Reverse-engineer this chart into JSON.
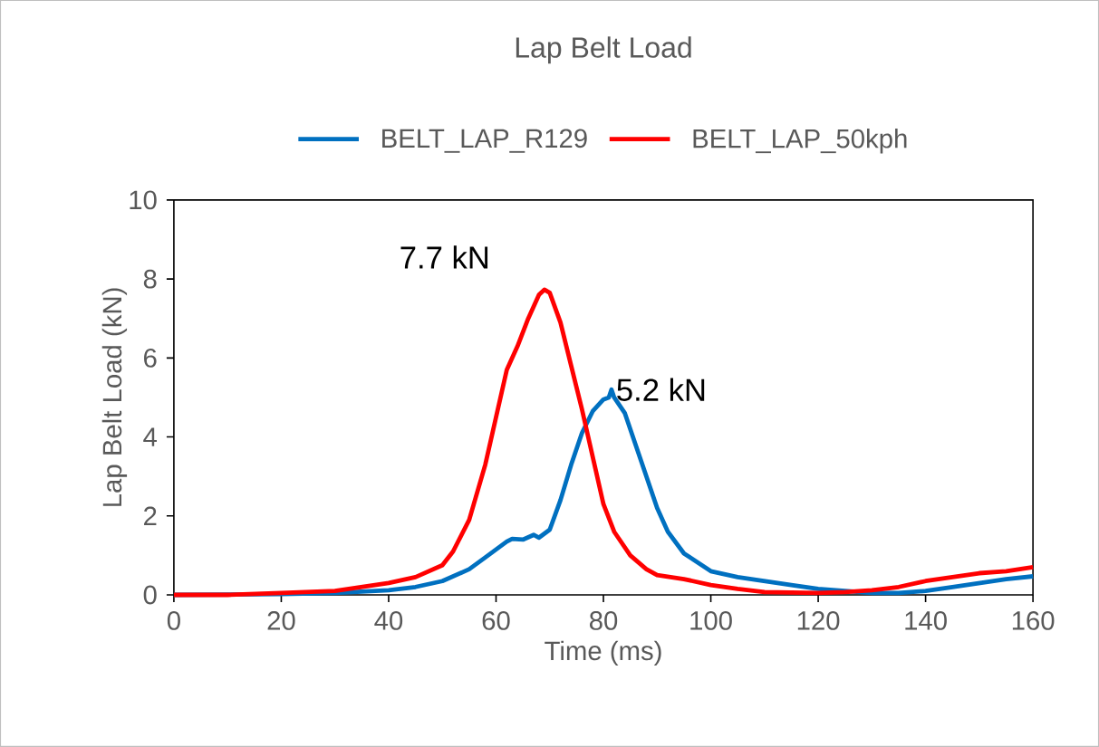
{
  "chart_data": {
    "type": "line",
    "title": "Lap Belt Load",
    "xlabel": "Time (ms)",
    "ylabel": "Lap Belt Load (kN)",
    "xlim": [
      0,
      160
    ],
    "xticks": [
      0,
      20,
      40,
      60,
      80,
      100,
      120,
      140,
      160
    ],
    "ylim": [
      0,
      10
    ],
    "yticks": [
      0,
      2,
      4,
      6,
      8,
      10
    ],
    "grid": false,
    "legend": "top",
    "marker": "none",
    "line_style": "solid",
    "series": [
      {
        "name": "BELT_LAP_R129",
        "color": "#0070c0",
        "x": [
          0,
          20,
          30,
          40,
          45,
          50,
          55,
          58,
          60,
          62,
          63,
          65,
          67,
          68,
          70,
          72,
          74,
          76,
          78,
          80,
          81,
          81.5,
          82,
          84,
          86,
          88,
          90,
          92,
          95,
          100,
          105,
          110,
          115,
          120,
          125,
          130,
          135,
          140,
          145,
          150,
          155,
          160
        ],
        "values": [
          0,
          0.02,
          0.05,
          0.12,
          0.2,
          0.35,
          0.65,
          0.95,
          1.15,
          1.35,
          1.42,
          1.4,
          1.52,
          1.45,
          1.65,
          2.4,
          3.3,
          4.1,
          4.65,
          4.95,
          5.0,
          5.2,
          5.0,
          4.6,
          3.8,
          3.0,
          2.2,
          1.6,
          1.05,
          0.6,
          0.45,
          0.35,
          0.25,
          0.15,
          0.1,
          0.05,
          0.05,
          0.1,
          0.2,
          0.3,
          0.4,
          0.47
        ]
      },
      {
        "name": "BELT_LAP_50kph",
        "color": "#ff0000",
        "x": [
          0,
          10,
          20,
          30,
          40,
          45,
          50,
          52,
          55,
          58,
          60,
          62,
          64,
          66,
          68,
          69,
          70,
          72,
          74,
          76,
          78,
          80,
          82,
          85,
          88,
          90,
          95,
          100,
          105,
          110,
          120,
          125,
          130,
          135,
          140,
          145,
          150,
          155,
          160
        ],
        "values": [
          0,
          0.0,
          0.05,
          0.1,
          0.3,
          0.45,
          0.75,
          1.1,
          1.9,
          3.3,
          4.5,
          5.7,
          6.3,
          7.0,
          7.6,
          7.73,
          7.65,
          6.9,
          5.8,
          4.7,
          3.5,
          2.3,
          1.6,
          1.0,
          0.65,
          0.5,
          0.4,
          0.25,
          0.15,
          0.07,
          0.05,
          0.07,
          0.12,
          0.2,
          0.35,
          0.45,
          0.55,
          0.6,
          0.7
        ]
      }
    ],
    "annotations": [
      {
        "text": "7.7 kN",
        "x": 69,
        "y": 7.73
      },
      {
        "text": "5.2 kN",
        "x": 81.5,
        "y": 5.2
      }
    ]
  }
}
